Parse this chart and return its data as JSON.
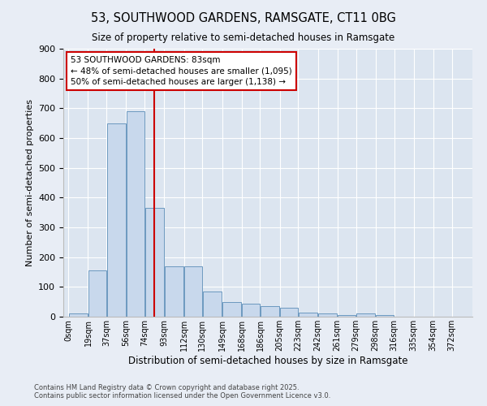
{
  "title1": "53, SOUTHWOOD GARDENS, RAMSGATE, CT11 0BG",
  "title2": "Size of property relative to semi-detached houses in Ramsgate",
  "xlabel": "Distribution of semi-detached houses by size in Ramsgate",
  "ylabel": "Number of semi-detached properties",
  "bin_starts": [
    0,
    19,
    37,
    56,
    74,
    93,
    112,
    130,
    149,
    168,
    186,
    205,
    223,
    242,
    261,
    279,
    298,
    316,
    335,
    354,
    372
  ],
  "bin_labels": [
    "0sqm",
    "19sqm",
    "37sqm",
    "56sqm",
    "74sqm",
    "93sqm",
    "112sqm",
    "130sqm",
    "149sqm",
    "168sqm",
    "186sqm",
    "205sqm",
    "223sqm",
    "242sqm",
    "261sqm",
    "279sqm",
    "298sqm",
    "316sqm",
    "335sqm",
    "354sqm",
    "372sqm"
  ],
  "bar_heights": [
    10,
    155,
    650,
    690,
    365,
    170,
    168,
    85,
    48,
    45,
    35,
    30,
    15,
    12,
    5,
    12,
    5,
    0,
    0,
    0,
    0
  ],
  "bar_color": "#c8d8ec",
  "bar_edge_color": "#5b8db8",
  "vline_x": 83,
  "vline_color": "#cc0000",
  "annotation_text": "53 SOUTHWOOD GARDENS: 83sqm\n← 48% of semi-detached houses are smaller (1,095)\n50% of semi-detached houses are larger (1,138) →",
  "annotation_box_facecolor": "white",
  "annotation_box_edgecolor": "#cc0000",
  "ylim": [
    0,
    900
  ],
  "yticks": [
    0,
    100,
    200,
    300,
    400,
    500,
    600,
    700,
    800,
    900
  ],
  "footer": "Contains HM Land Registry data © Crown copyright and database right 2025.\nContains public sector information licensed under the Open Government Licence v3.0.",
  "bg_color": "#e8edf5",
  "plot_bg_color": "#dce5f0",
  "grid_color": "#ffffff"
}
